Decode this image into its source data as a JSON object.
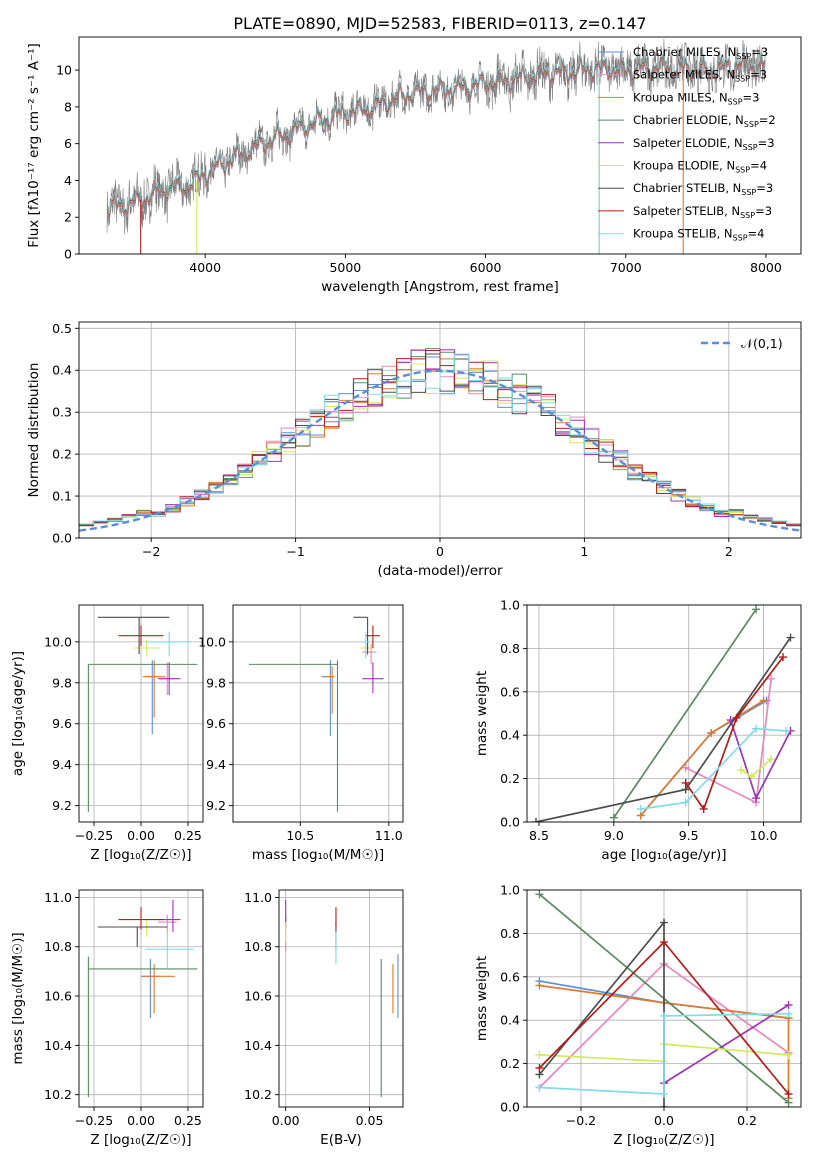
{
  "colors": {
    "Chabrier MILES": "#5b8fd9",
    "Salpeter MILES": "#e887be",
    "Kroupa MILES": "#e07a2e",
    "Chabrier ELODIE": "#5a8a60",
    "Salpeter ELODIE": "#9b34b4",
    "Kroupa ELODIE": "#d4ea5a",
    "Chabrier STELIB": "#4d4d4d",
    "Salpeter STELIB": "#b41c1c",
    "Kroupa STELIB": "#82dbe6"
  },
  "chart_data": [
    {
      "id": "spectrum",
      "type": "line",
      "title": "PLATE=0890, MJD=52583, FIBERID=0113, z=0.147",
      "xlabel": "wavelength [Angstrom, rest frame]",
      "ylabel": "Flux [fλ10⁻¹⁷ erg cm⁻² s⁻¹ A⁻¹]",
      "xlim": [
        3100,
        8250
      ],
      "ylim": [
        0,
        11.8
      ],
      "xticks": [
        4000,
        5000,
        6000,
        7000,
        8000
      ],
      "yticks": [
        0,
        2,
        4,
        6,
        8,
        10
      ],
      "legend_position": "top-right",
      "legend": [
        "Chabrier MILES, N_SSP=3",
        "Salpeter MILES, N_SSP=3",
        "Kroupa MILES, N_SSP=3",
        "Chabrier ELODIE, N_SSP=2",
        "Salpeter ELODIE, N_SSP=3",
        "Kroupa ELODIE, N_SSP=4",
        "Chabrier STELIB, N_SSP=3",
        "Salpeter STELIB, N_SSP=3",
        "Kroupa STELIB, N_SSP=4"
      ],
      "continuum": {
        "x": [
          3300,
          3500,
          3700,
          3900,
          4000,
          4200,
          4400,
          4600,
          4800,
          5000,
          5200,
          5400,
          5600,
          5800,
          6000,
          6200,
          6400,
          6600,
          6800,
          7000,
          7200,
          7400,
          7600,
          7800,
          8000
        ],
        "y": [
          2.5,
          2.8,
          3.5,
          3.8,
          4.4,
          5.2,
          6.0,
          6.6,
          7.2,
          7.7,
          8.0,
          8.6,
          8.9,
          9.0,
          9.3,
          9.5,
          9.8,
          9.9,
          10.1,
          10.0,
          10.2,
          10.1,
          10.0,
          10.3,
          10.2
        ]
      },
      "model_vertical_drops": [
        {
          "model": "Salpeter STELIB",
          "x": 3540
        },
        {
          "model": "Kroupa ELODIE",
          "x": 3940
        },
        {
          "model": "Kroupa MILES",
          "x": 6810
        },
        {
          "model": "Kroupa STELIB",
          "x": 6810
        },
        {
          "model": "Kroupa MILES",
          "x": 7410
        }
      ]
    },
    {
      "id": "residuals",
      "type": "histogram",
      "xlabel": "(data-model)/error",
      "ylabel": "Normed distribution",
      "xlim": [
        -2.5,
        2.5
      ],
      "ylim": [
        0,
        0.515
      ],
      "xticks": [
        -2,
        -1,
        0,
        1,
        2
      ],
      "yticks": [
        0.0,
        0.1,
        0.2,
        0.3,
        0.4,
        0.5
      ],
      "bin_edges_start": -2.6,
      "bin_width": 0.1,
      "reference_curve": {
        "label": "𝒩(0,1)",
        "mean": 0,
        "sigma": 1
      },
      "legend_position": "top-right"
    },
    {
      "id": "age_vs_Z",
      "type": "errorbar",
      "xlabel": "Z [log₁₀(Z/Z☉)]",
      "ylabel": "age  [log₁₀(age/yr)]",
      "xlim": [
        -0.33,
        0.33
      ],
      "ylim": [
        9.12,
        10.18
      ],
      "xticks": [
        -0.25,
        0.0,
        0.25
      ],
      "yticks": [
        9.2,
        9.4,
        9.6,
        9.8,
        10.0
      ],
      "points": [
        {
          "model": "Chabrier MILES",
          "x": 0.06,
          "xerr": [
            0.03,
            0.03
          ],
          "y": 9.83,
          "yerr": [
            0.28,
            0.08
          ]
        },
        {
          "model": "Salpeter MILES",
          "x": 0.14,
          "xerr": [
            0.04,
            0.04
          ],
          "y": 9.82,
          "yerr": [
            0.08,
            0.08
          ]
        },
        {
          "model": "Kroupa MILES",
          "x": 0.07,
          "xerr": [
            0.06,
            0.06
          ],
          "y": 9.83,
          "yerr": [
            0.2,
            0.08
          ]
        },
        {
          "model": "Chabrier ELODIE",
          "x": -0.28,
          "xerr": [
            0.0,
            0.58
          ],
          "y": 9.89,
          "yerr": [
            0.72,
            0.0
          ]
        },
        {
          "model": "Salpeter ELODIE",
          "x": 0.15,
          "xerr": [
            0.06,
            0.06
          ],
          "y": 9.82,
          "yerr": [
            0.08,
            0.08
          ]
        },
        {
          "model": "Kroupa ELODIE",
          "x": 0.03,
          "xerr": [
            0.07,
            0.07
          ],
          "y": 9.97,
          "yerr": [
            0.04,
            0.04
          ]
        },
        {
          "model": "Chabrier STELIB",
          "x": -0.01,
          "xerr": [
            0.22,
            0.16
          ],
          "y": 10.12,
          "yerr": [
            0.18,
            0.0
          ]
        },
        {
          "model": "Salpeter STELIB",
          "x": 0.0,
          "xerr": [
            0.12,
            0.12
          ],
          "y": 10.03,
          "yerr": [
            0.05,
            0.05
          ]
        },
        {
          "model": "Kroupa STELIB",
          "x": 0.15,
          "xerr": [
            0.12,
            0.12
          ],
          "y": 10.0,
          "yerr": [
            0.07,
            0.05
          ]
        }
      ]
    },
    {
      "id": "age_vs_mass",
      "type": "errorbar",
      "xlabel": "mass [log₁₀(M/M☉)]",
      "xlim": [
        10.12,
        11.08
      ],
      "ylim": [
        9.12,
        10.18
      ],
      "xticks": [
        10.5,
        11.0
      ],
      "yticks": [
        9.2,
        9.4,
        9.6,
        9.8,
        10.0
      ],
      "points": [
        {
          "model": "Chabrier MILES",
          "x": 10.67,
          "xerr": [
            0.05,
            0.02
          ],
          "y": 9.83,
          "yerr": [
            0.29,
            0.08
          ]
        },
        {
          "model": "Salpeter MILES",
          "x": 10.9,
          "xerr": [
            0.05,
            0.03
          ],
          "y": 9.95,
          "yerr": [
            0.06,
            0.04
          ]
        },
        {
          "model": "Kroupa MILES",
          "x": 10.68,
          "xerr": [
            0.04,
            0.01
          ],
          "y": 9.83,
          "yerr": [
            0.18,
            0.05
          ]
        },
        {
          "model": "Chabrier ELODIE",
          "x": 10.71,
          "xerr": [
            0.5,
            0.0
          ],
          "y": 9.89,
          "yerr": [
            0.72,
            0.02
          ]
        },
        {
          "model": "Salpeter ELODIE",
          "x": 10.91,
          "xerr": [
            0.06,
            0.06
          ],
          "y": 9.82,
          "yerr": [
            0.07,
            0.08
          ]
        },
        {
          "model": "Kroupa ELODIE",
          "x": 10.88,
          "xerr": [
            0.04,
            0.03
          ],
          "y": 9.97,
          "yerr": [
            0.04,
            0.04
          ]
        },
        {
          "model": "Chabrier STELIB",
          "x": 10.88,
          "xerr": [
            0.08,
            0.0
          ],
          "y": 10.12,
          "yerr": [
            0.18,
            0.0
          ]
        },
        {
          "model": "Salpeter STELIB",
          "x": 10.91,
          "xerr": [
            0.04,
            0.04
          ],
          "y": 10.03,
          "yerr": [
            0.06,
            0.05
          ]
        },
        {
          "model": "Kroupa STELIB",
          "x": 10.87,
          "xerr": [
            0.02,
            0.02
          ],
          "y": 10.0,
          "yerr": [
            0.08,
            0.05
          ]
        }
      ]
    },
    {
      "id": "weight_vs_age",
      "type": "line",
      "xlabel": "age  [log₁₀(age/yr)]",
      "ylabel": "mass weight",
      "xlim": [
        8.42,
        10.25
      ],
      "ylim": [
        0,
        1
      ],
      "xticks": [
        8.5,
        9.0,
        9.5,
        10.0
      ],
      "yticks": [
        0.0,
        0.2,
        0.4,
        0.6,
        0.8,
        1.0
      ],
      "series": [
        {
          "model": "Chabrier MILES",
          "x": [
            9.18,
            9.65,
            10.02
          ],
          "y": [
            0.03,
            0.41,
            0.56
          ]
        },
        {
          "model": "Salpeter MILES",
          "x": [
            9.48,
            9.95,
            10.05
          ],
          "y": [
            0.25,
            0.09,
            0.66
          ]
        },
        {
          "model": "Kroupa MILES",
          "x": [
            9.18,
            9.65,
            10.0
          ],
          "y": [
            0.03,
            0.41,
            0.56
          ]
        },
        {
          "model": "Chabrier ELODIE",
          "x": [
            9.0,
            9.95
          ],
          "y": [
            0.02,
            0.98
          ]
        },
        {
          "model": "Salpeter ELODIE",
          "x": [
            9.78,
            9.95,
            10.18
          ],
          "y": [
            0.47,
            0.11,
            0.42
          ]
        },
        {
          "model": "Kroupa ELODIE",
          "x": [
            9.85,
            9.92,
            10.05
          ],
          "y": [
            0.24,
            0.21,
            0.29
          ]
        },
        {
          "model": "Chabrier STELIB",
          "x": [
            8.48,
            9.48,
            10.18
          ],
          "y": [
            0.0,
            0.15,
            0.85
          ]
        },
        {
          "model": "Salpeter STELIB",
          "x": [
            9.48,
            9.6,
            9.82,
            10.13
          ],
          "y": [
            0.18,
            0.06,
            0.48,
            0.76
          ]
        },
        {
          "model": "Kroupa STELIB",
          "x": [
            9.18,
            9.48,
            9.95,
            10.15
          ],
          "y": [
            0.06,
            0.09,
            0.43,
            0.42
          ]
        }
      ]
    },
    {
      "id": "mass_vs_Z",
      "type": "errorbar",
      "xlabel": "Z [log₁₀(Z/Z☉)]",
      "ylabel": "mass [log₁₀(M/M☉)]",
      "xlim": [
        -0.33,
        0.33
      ],
      "ylim": [
        10.15,
        11.03
      ],
      "xticks": [
        -0.25,
        0.0,
        0.25
      ],
      "yticks": [
        10.2,
        10.4,
        10.6,
        10.8,
        11.0
      ],
      "points": [
        {
          "model": "Chabrier MILES",
          "x": 0.05,
          "xerr": [
            0.05,
            0.05
          ],
          "y": 10.68,
          "yerr": [
            0.17,
            0.07
          ]
        },
        {
          "model": "Salpeter MILES",
          "x": 0.14,
          "xerr": [
            0.05,
            0.05
          ],
          "y": 10.9,
          "yerr": [
            0.05,
            0.03
          ]
        },
        {
          "model": "Kroupa MILES",
          "x": 0.07,
          "xerr": [
            0.06,
            0.11
          ],
          "y": 10.68,
          "yerr": [
            0.15,
            0.05
          ]
        },
        {
          "model": "Chabrier ELODIE",
          "x": -0.28,
          "xerr": [
            0.0,
            0.58
          ],
          "y": 10.71,
          "yerr": [
            0.52,
            0.05
          ]
        },
        {
          "model": "Salpeter ELODIE",
          "x": 0.17,
          "xerr": [
            0.08,
            0.04
          ],
          "y": 10.91,
          "yerr": [
            0.05,
            0.08
          ]
        },
        {
          "model": "Kroupa ELODIE",
          "x": 0.03,
          "xerr": [
            0.07,
            0.07
          ],
          "y": 10.88,
          "yerr": [
            0.04,
            0.03
          ]
        },
        {
          "model": "Chabrier STELIB",
          "x": -0.02,
          "xerr": [
            0.21,
            0.16
          ],
          "y": 10.88,
          "yerr": [
            0.08,
            0.0
          ]
        },
        {
          "model": "Salpeter STELIB",
          "x": 0.0,
          "xerr": [
            0.12,
            0.12
          ],
          "y": 10.91,
          "yerr": [
            0.04,
            0.05
          ]
        },
        {
          "model": "Kroupa STELIB",
          "x": 0.14,
          "xerr": [
            0.12,
            0.14
          ],
          "y": 10.79,
          "yerr": [
            0.08,
            0.08
          ]
        }
      ]
    },
    {
      "id": "mass_vs_EBV",
      "type": "errorbar",
      "xlabel": "E(B-V)",
      "xlim": [
        -0.004,
        0.07
      ],
      "ylim": [
        10.15,
        11.03
      ],
      "xticks": [
        0.0,
        0.05
      ],
      "yticks": [
        10.2,
        10.4,
        10.6,
        10.8,
        11.0
      ],
      "points": [
        {
          "model": "Chabrier MILES",
          "x": 0.067,
          "xerr": [
            0,
            0
          ],
          "y": 10.68,
          "yerr": [
            0.17,
            0.09
          ]
        },
        {
          "model": "Salpeter MILES",
          "x": 0.0,
          "xerr": [
            0,
            0
          ],
          "y": 10.88,
          "yerr": [
            0.1,
            0.04
          ]
        },
        {
          "model": "Kroupa MILES",
          "x": 0.064,
          "xerr": [
            0,
            0
          ],
          "y": 10.68,
          "yerr": [
            0.15,
            0.05
          ]
        },
        {
          "model": "Chabrier ELODIE",
          "x": 0.057,
          "xerr": [
            0,
            0
          ],
          "y": 10.71,
          "yerr": [
            0.52,
            0.04
          ]
        },
        {
          "model": "Salpeter ELODIE",
          "x": 0.0,
          "xerr": [
            0,
            0
          ],
          "y": 10.92,
          "yerr": [
            0.04,
            0.07
          ]
        },
        {
          "model": "Kroupa ELODIE",
          "x": 0.0,
          "xerr": [
            0,
            0
          ],
          "y": 10.87,
          "yerr": [
            0.05,
            0.03
          ]
        },
        {
          "model": "Chabrier STELIB",
          "x": 0.03,
          "xerr": [
            0,
            0
          ],
          "y": 10.85,
          "yerr": [
            0.07,
            0.05
          ]
        },
        {
          "model": "Salpeter STELIB",
          "x": 0.03,
          "xerr": [
            0,
            0
          ],
          "y": 10.92,
          "yerr": [
            0.04,
            0.04
          ]
        },
        {
          "model": "Kroupa STELIB",
          "x": 0.03,
          "xerr": [
            0,
            0
          ],
          "y": 10.8,
          "yerr": [
            0.07,
            0.06
          ]
        }
      ]
    },
    {
      "id": "weight_vs_Z",
      "type": "line",
      "xlabel": "Z [log₁₀(Z/Z☉)]",
      "ylabel": "mass weight",
      "xlim": [
        -0.33,
        0.33
      ],
      "ylim": [
        0,
        1
      ],
      "xticks": [
        -0.2,
        0.0,
        0.2
      ],
      "yticks": [
        0.0,
        0.2,
        0.4,
        0.6,
        0.8,
        1.0
      ],
      "series": [
        {
          "model": "Chabrier MILES",
          "x": [
            -0.3,
            0.0,
            0.3
          ],
          "y": [
            0.58,
            0.48,
            0.41
          ]
        },
        {
          "model": "Salpeter MILES",
          "x": [
            -0.3,
            0.0,
            0.3
          ],
          "y": [
            0.09,
            0.66,
            0.25
          ]
        },
        {
          "model": "Kroupa MILES",
          "x": [
            -0.3,
            0.0,
            0.3,
            0.3
          ],
          "y": [
            0.56,
            0.48,
            0.41,
            0.04
          ]
        },
        {
          "model": "Chabrier ELODIE",
          "x": [
            -0.3,
            0.3
          ],
          "y": [
            0.98,
            0.02
          ]
        },
        {
          "model": "Salpeter ELODIE",
          "x": [
            0.0,
            0.3
          ],
          "y": [
            0.11,
            0.47
          ]
        },
        {
          "model": "Kroupa ELODIE",
          "x": [
            -0.3,
            0.0,
            0.0,
            0.3
          ],
          "y": [
            0.24,
            0.21,
            0.29,
            0.24
          ]
        },
        {
          "model": "Chabrier STELIB",
          "x": [
            -0.3,
            0.0,
            0.0
          ],
          "y": [
            0.15,
            0.85,
            0.0
          ]
        },
        {
          "model": "Salpeter STELIB",
          "x": [
            -0.3,
            0.0,
            0.3
          ],
          "y": [
            0.18,
            0.76,
            0.06
          ]
        },
        {
          "model": "Kroupa STELIB",
          "x": [
            -0.3,
            0.0,
            0.0,
            0.3
          ],
          "y": [
            0.09,
            0.06,
            0.42,
            0.43
          ]
        }
      ]
    }
  ]
}
